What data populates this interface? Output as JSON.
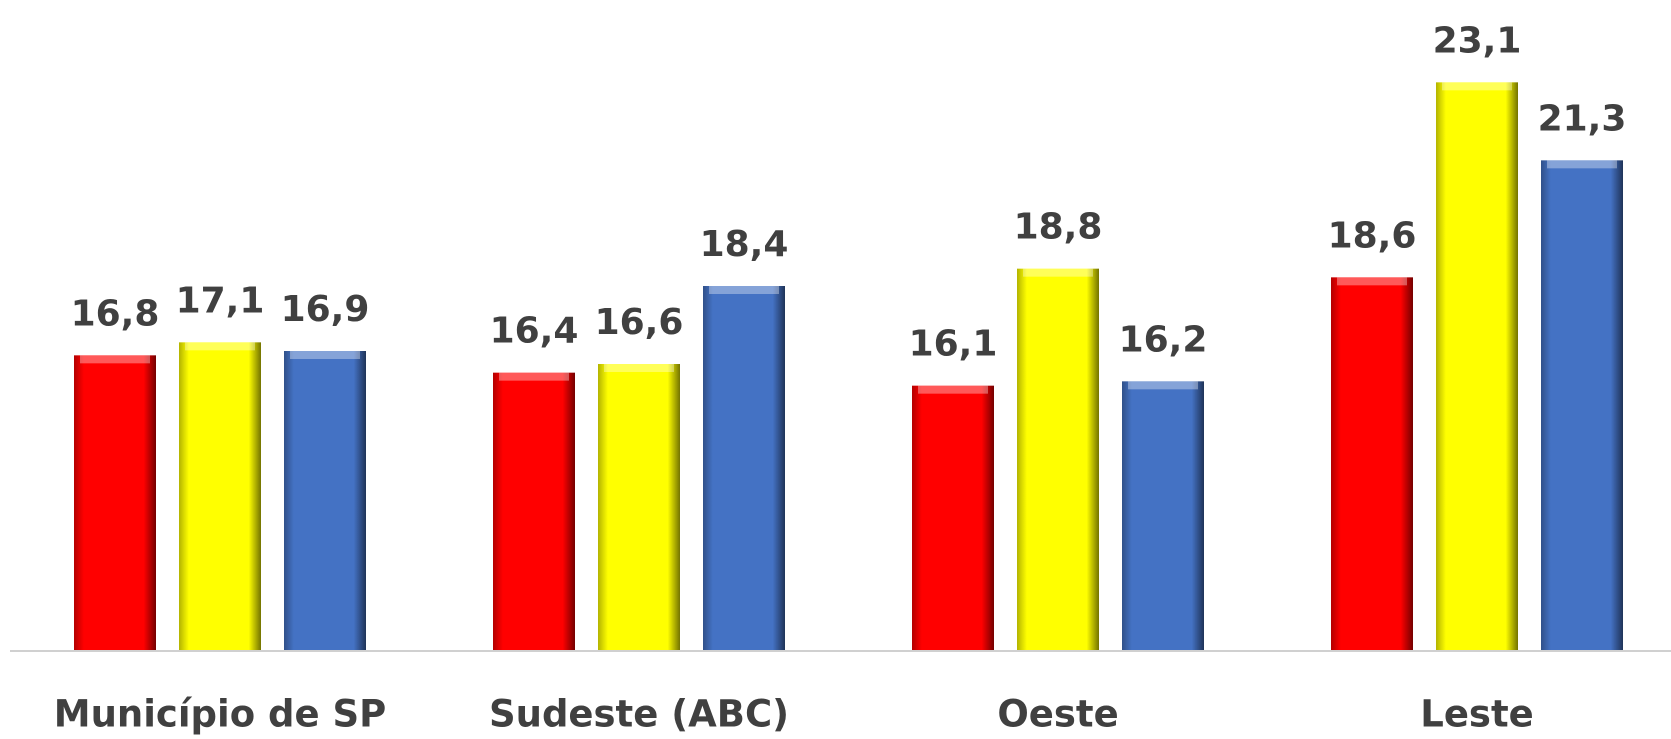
{
  "chart_data": {
    "type": "bar",
    "categories": [
      "Município de SP",
      "Sudeste (ABC)",
      "Oeste",
      "Leste"
    ],
    "series": [
      {
        "color": "#ff0000",
        "values": [
          16.8,
          16.4,
          16.1,
          18.6
        ],
        "value_labels": [
          "16,8",
          "16,4",
          "16,1",
          "18,6"
        ]
      },
      {
        "color": "#ffff00",
        "values": [
          17.1,
          16.6,
          18.8,
          23.1
        ],
        "value_labels": [
          "17,1",
          "16,6",
          "18,8",
          "23,1"
        ]
      },
      {
        "color": "#4472c4",
        "values": [
          16.9,
          18.4,
          16.2,
          21.3
        ],
        "value_labels": [
          "16,9",
          "18,4",
          "16,2",
          "21,3"
        ]
      }
    ],
    "ylim": [
      10,
      25
    ]
  }
}
